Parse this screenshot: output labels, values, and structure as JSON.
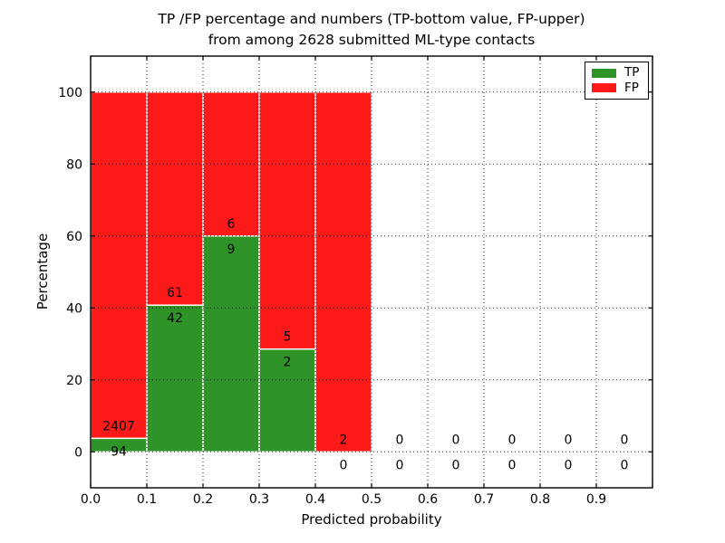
{
  "title": {
    "line1": "TP /FP percentage and numbers (TP-bottom value, FP-upper)",
    "line2": "from among 2628 submitted ML-type contacts"
  },
  "chart_data": {
    "type": "bar",
    "variant": "stacked-percentage-histogram",
    "title": "TP /FP percentage and numbers (TP-bottom value, FP-upper)\nfrom among 2628 submitted ML-type contacts",
    "xlabel": "Predicted probability",
    "ylabel": "Percentage",
    "bin_width": 0.1,
    "bin_starts": [
      0.0,
      0.1,
      0.2,
      0.3,
      0.4,
      0.5,
      0.6,
      0.7,
      0.8,
      0.9
    ],
    "series": [
      {
        "name": "TP",
        "color": "#2e9428",
        "counts": [
          94,
          42,
          9,
          2,
          0,
          0,
          0,
          0,
          0,
          0
        ]
      },
      {
        "name": "FP",
        "color": "#ff1a1a",
        "counts": [
          2407,
          61,
          6,
          5,
          2,
          0,
          0,
          0,
          0,
          0
        ]
      }
    ],
    "tp_percent_of_bin": [
      3.76,
      40.78,
      60.0,
      28.57,
      0.0,
      0.0,
      0.0,
      0.0,
      0.0,
      0.0
    ],
    "xlim": [
      0.0,
      1.0
    ],
    "ylim": [
      -10,
      110
    ],
    "xticks": [
      "0.0",
      "0.1",
      "0.2",
      "0.3",
      "0.4",
      "0.5",
      "0.6",
      "0.7",
      "0.8",
      "0.9"
    ],
    "yticks": [
      "0",
      "20",
      "40",
      "60",
      "80",
      "100"
    ],
    "grid": "dotted-black",
    "bar_edge_color": "#ffffff",
    "legend": {
      "position": "upper-right",
      "entries": [
        "TP",
        "FP"
      ]
    }
  }
}
